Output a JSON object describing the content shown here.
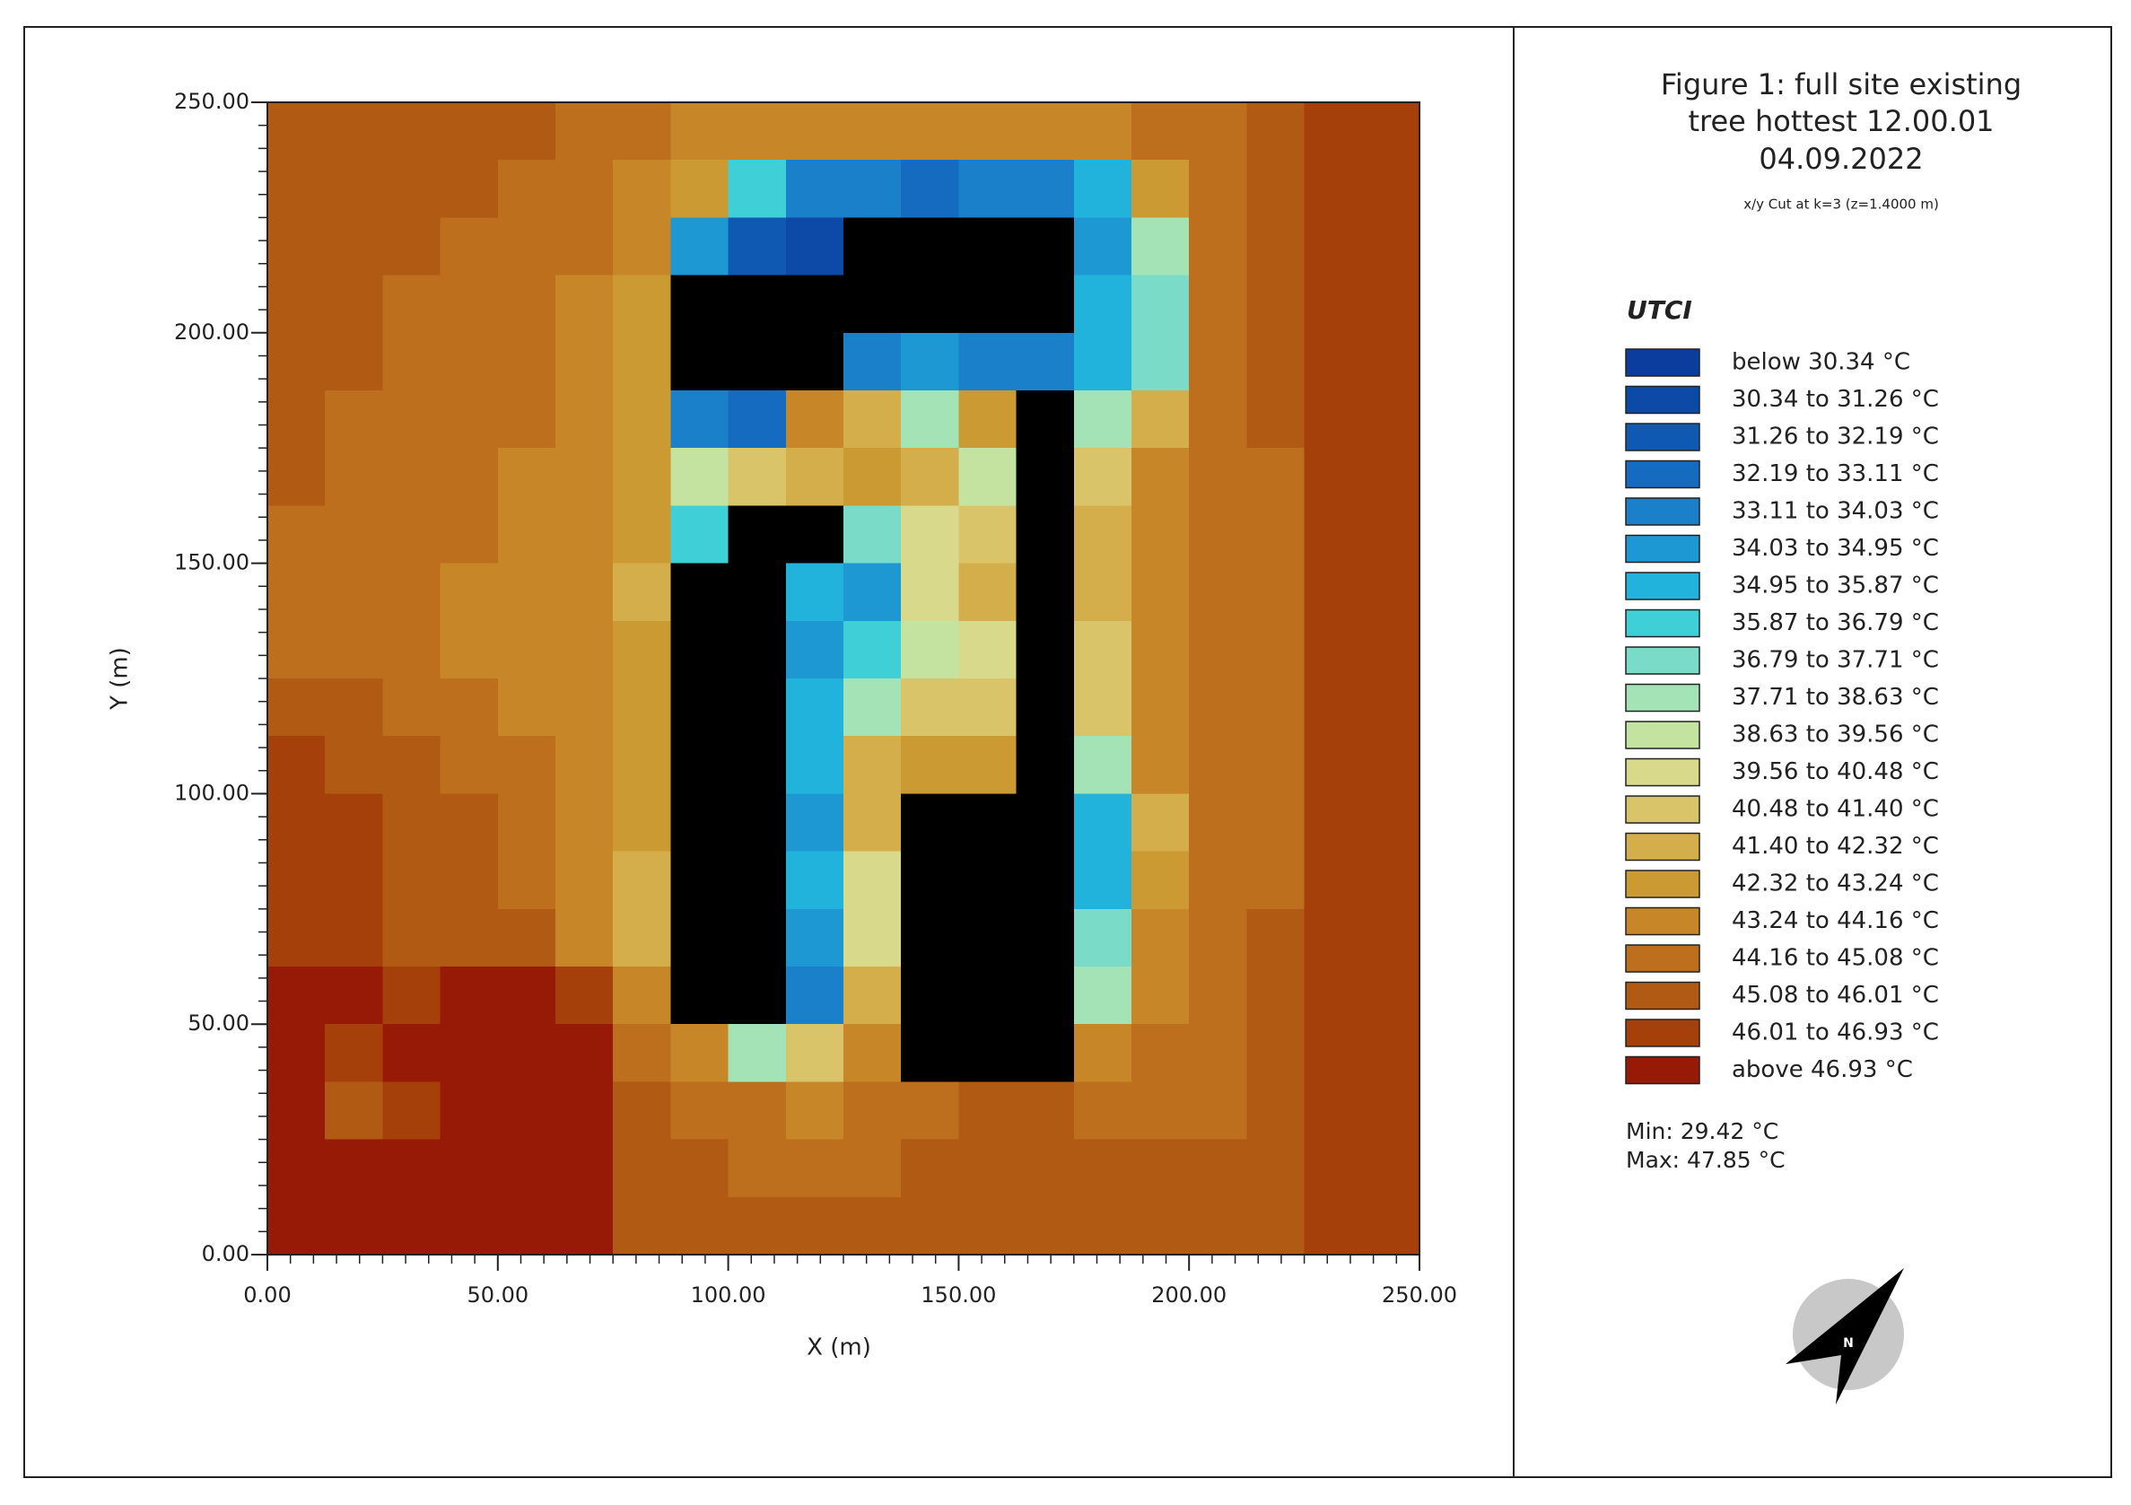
{
  "chart_data": {
    "type": "heatmap",
    "title_lines": [
      "Figure 1: full site existing",
      "tree hottest 12.00.01",
      "04.09.2022"
    ],
    "subtitle": "x/y Cut at k=3 (z=1.4000 m)",
    "x_label": "X (m)",
    "y_label": "Y (m)",
    "xlim": [
      0,
      250
    ],
    "ylim": [
      0,
      250
    ],
    "xticks": [
      {
        "value": 0,
        "label": "0.00"
      },
      {
        "value": 50,
        "label": "50.00"
      },
      {
        "value": 100,
        "label": "100.00"
      },
      {
        "value": 150,
        "label": "150.00"
      },
      {
        "value": 200,
        "label": "200.00"
      },
      {
        "value": 250,
        "label": "250.00"
      }
    ],
    "yticks": [
      {
        "value": 0,
        "label": "0.00"
      },
      {
        "value": 50,
        "label": "50.00"
      },
      {
        "value": 100,
        "label": "100.00"
      },
      {
        "value": 150,
        "label": "150.00"
      },
      {
        "value": 200,
        "label": "200.00"
      },
      {
        "value": 250,
        "label": "250.00"
      }
    ],
    "minor_step": 5,
    "cell_size": 12.5,
    "x": [
      6.25,
      18.75,
      31.25,
      43.75,
      56.25,
      68.75,
      81.25,
      93.75,
      106.25,
      118.75,
      131.25,
      143.75,
      156.25,
      168.75,
      181.25,
      193.75,
      206.25,
      218.75,
      231.25,
      243.75
    ],
    "y": [
      243.75,
      231.25,
      218.75,
      206.25,
      193.75,
      181.25,
      168.75,
      156.25,
      143.75,
      131.25,
      118.75,
      106.25,
      93.75,
      81.25,
      68.75,
      56.25,
      43.75,
      31.25,
      18.75,
      6.25
    ],
    "values": [
      [
        45.5,
        45.5,
        45.4,
        45.3,
        45.2,
        45.0,
        44.5,
        44.0,
        43.8,
        43.6,
        43.5,
        43.5,
        43.6,
        43.8,
        44.0,
        44.5,
        45.0,
        45.3,
        46.5,
        46.5
      ],
      [
        45.5,
        45.4,
        45.3,
        45.2,
        45.0,
        44.6,
        44.0,
        43.0,
        36.0,
        34.0,
        33.5,
        33.0,
        33.5,
        34.0,
        35.5,
        43.0,
        44.8,
        45.3,
        46.5,
        46.6
      ],
      [
        45.4,
        45.3,
        45.2,
        45.0,
        44.7,
        44.3,
        43.5,
        34.5,
        32.0,
        30.5,
        null,
        null,
        null,
        null,
        34.5,
        38.0,
        44.5,
        45.2,
        46.5,
        46.6
      ],
      [
        45.4,
        45.2,
        45.0,
        44.8,
        44.5,
        44.0,
        43.0,
        null,
        null,
        null,
        null,
        null,
        null,
        null,
        35.5,
        37.0,
        44.3,
        45.2,
        46.4,
        46.6
      ],
      [
        45.3,
        45.1,
        44.9,
        44.6,
        44.3,
        43.8,
        42.5,
        null,
        null,
        null,
        34.0,
        34.5,
        33.5,
        34.0,
        35.0,
        37.5,
        44.2,
        45.1,
        46.4,
        46.6
      ],
      [
        45.2,
        45.0,
        44.8,
        44.5,
        44.2,
        43.8,
        43.0,
        34.0,
        33.0,
        43.5,
        42.0,
        38.0,
        43.0,
        null,
        38.5,
        42.0,
        44.3,
        45.1,
        46.4,
        46.5
      ],
      [
        45.1,
        44.9,
        44.7,
        44.4,
        44.0,
        43.6,
        43.0,
        39.0,
        41.0,
        42.0,
        42.5,
        42.0,
        39.5,
        null,
        40.5,
        43.5,
        44.3,
        45.0,
        46.3,
        46.5
      ],
      [
        45.0,
        44.8,
        44.5,
        44.2,
        43.9,
        43.5,
        42.5,
        36.0,
        null,
        null,
        37.0,
        40.0,
        41.0,
        null,
        41.5,
        43.8,
        44.3,
        45.0,
        46.3,
        46.5
      ],
      [
        44.9,
        44.7,
        44.4,
        44.1,
        43.8,
        43.4,
        42.0,
        null,
        null,
        35.0,
        34.5,
        40.0,
        41.5,
        null,
        42.0,
        43.8,
        44.3,
        45.0,
        46.2,
        46.5
      ],
      [
        44.8,
        44.6,
        44.3,
        44.0,
        43.7,
        43.3,
        42.5,
        null,
        null,
        34.8,
        36.0,
        39.0,
        40.0,
        null,
        41.0,
        43.8,
        44.3,
        45.0,
        46.2,
        46.4
      ],
      [
        45.5,
        45.3,
        45.0,
        44.5,
        44.0,
        43.5,
        43.0,
        null,
        null,
        35.0,
        38.0,
        41.0,
        40.5,
        null,
        41.0,
        43.8,
        44.4,
        45.0,
        46.2,
        46.4
      ],
      [
        46.2,
        46.0,
        45.6,
        45.0,
        44.3,
        43.5,
        43.0,
        null,
        null,
        35.5,
        42.0,
        43.0,
        42.5,
        null,
        38.0,
        43.5,
        44.4,
        45.0,
        46.2,
        46.4
      ],
      [
        46.3,
        46.1,
        45.8,
        45.2,
        44.5,
        43.8,
        42.5,
        null,
        null,
        34.5,
        41.5,
        null,
        null,
        null,
        35.0,
        42.0,
        44.3,
        45.0,
        46.2,
        46.4
      ],
      [
        46.3,
        46.1,
        45.8,
        45.3,
        44.6,
        43.8,
        41.5,
        null,
        null,
        35.0,
        40.0,
        null,
        null,
        null,
        35.5,
        42.5,
        44.3,
        45.0,
        46.2,
        46.4
      ],
      [
        46.3,
        46.2,
        45.9,
        45.4,
        45.6,
        44.0,
        41.5,
        null,
        null,
        34.5,
        40.0,
        null,
        null,
        null,
        37.0,
        43.5,
        44.5,
        45.1,
        46.2,
        46.4
      ],
      [
        47.0,
        47.2,
        46.8,
        47.2,
        47.3,
        46.2,
        43.5,
        null,
        null,
        34.0,
        41.5,
        null,
        null,
        null,
        38.5,
        44.0,
        44.6,
        45.2,
        46.2,
        46.4
      ],
      [
        47.1,
        46.2,
        47.2,
        47.3,
        47.4,
        47.0,
        44.5,
        43.8,
        38.0,
        41.0,
        43.5,
        null,
        null,
        null,
        43.8,
        44.3,
        44.8,
        45.3,
        46.3,
        46.5
      ],
      [
        47.2,
        46.0,
        46.2,
        47.3,
        47.4,
        47.2,
        45.2,
        44.6,
        44.3,
        44.0,
        44.5,
        45.0,
        45.3,
        45.4,
        45.0,
        44.8,
        45.0,
        45.5,
        46.3,
        46.5
      ],
      [
        47.3,
        47.4,
        47.4,
        47.5,
        47.5,
        47.3,
        45.5,
        45.2,
        45.0,
        44.9,
        45.0,
        45.3,
        45.5,
        45.5,
        45.3,
        45.2,
        45.3,
        45.8,
        46.4,
        46.5
      ],
      [
        47.3,
        47.4,
        47.5,
        47.5,
        47.5,
        47.4,
        45.7,
        45.5,
        45.3,
        45.2,
        45.2,
        45.4,
        45.6,
        45.7,
        45.5,
        45.4,
        45.5,
        45.9,
        46.4,
        46.6
      ]
    ],
    "building_color": "#000000",
    "legend_title": "UTCI",
    "levels": [
      30.34,
      31.26,
      32.19,
      33.11,
      34.03,
      34.95,
      35.87,
      36.79,
      37.71,
      38.63,
      39.56,
      40.48,
      41.4,
      42.32,
      43.24,
      44.16,
      45.08,
      46.01,
      46.93
    ],
    "legend": [
      {
        "label": "below 30.34 °C",
        "color": "#0b3d9e"
      },
      {
        "label": "30.34 to 31.26 °C",
        "color": "#0d4aa8"
      },
      {
        "label": "31.26 to 32.19 °C",
        "color": "#1059b3"
      },
      {
        "label": "32.19 to 33.11 °C",
        "color": "#146bbf"
      },
      {
        "label": "33.11 to 34.03 °C",
        "color": "#1a80c9"
      },
      {
        "label": "34.03 to 34.95 °C",
        "color": "#1e98d3"
      },
      {
        "label": "34.95 to 35.87 °C",
        "color": "#22b3dc"
      },
      {
        "label": "35.87 to 36.79 °C",
        "color": "#3fcfd6"
      },
      {
        "label": "36.79 to 37.71 °C",
        "color": "#7adcc8"
      },
      {
        "label": "37.71 to 38.63 °C",
        "color": "#a3e3b6"
      },
      {
        "label": "38.63 to 39.56 °C",
        "color": "#c4e3a0"
      },
      {
        "label": "39.56 to 40.48 °C",
        "color": "#d8d98a"
      },
      {
        "label": "40.48 to 41.40 °C",
        "color": "#d9c46a"
      },
      {
        "label": "41.40 to 42.32 °C",
        "color": "#d4ae4a"
      },
      {
        "label": "42.32 to 43.24 °C",
        "color": "#cc9a33"
      },
      {
        "label": "43.24 to 44.16 °C",
        "color": "#c78628"
      },
      {
        "label": "44.16 to 45.08 °C",
        "color": "#bd6f1e"
      },
      {
        "label": "45.08 to 46.01 °C",
        "color": "#b05a14"
      },
      {
        "label": "46.01 to 46.93 °C",
        "color": "#a6400b"
      },
      {
        "label": "above 46.93 °C",
        "color": "#961a05"
      }
    ],
    "min_label": "Min: 29.42 °C",
    "max_label": "Max: 47.85 °C",
    "compass_label": "N"
  }
}
